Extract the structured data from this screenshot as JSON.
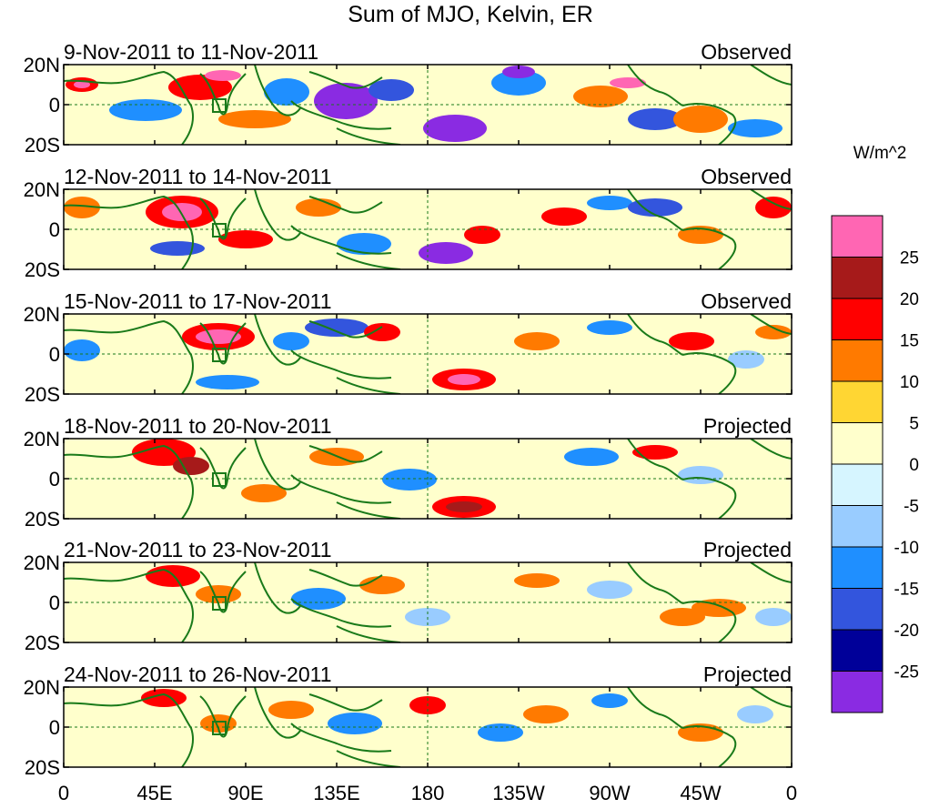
{
  "title": "Sum of MJO, Kelvin, ER",
  "units": "W/m^2",
  "y_tick_labels": [
    "20N",
    "0",
    "20S"
  ],
  "x_tick_labels": [
    "0",
    "45E",
    "90E",
    "135E",
    "180",
    "135W",
    "90W",
    "45W",
    "0"
  ],
  "colorbar": {
    "tick_labels": [
      "25",
      "20",
      "15",
      "10",
      "5",
      "0",
      "-5",
      "-10",
      "-15",
      "-20",
      "-25"
    ],
    "colors": [
      "#ff66b3",
      "#a61a1a",
      "#ff0000",
      "#ff7a00",
      "#ffd633",
      "#ffffcc",
      "#d6f5ff",
      "#99ccff",
      "#1f8fff",
      "#3355dd",
      "#000099",
      "#8a2be2"
    ]
  },
  "coastline_color": "#1a7a1a",
  "panels": [
    {
      "date_range": "9-Nov-2011 to 11-Nov-2011",
      "status": "Observed"
    },
    {
      "date_range": "12-Nov-2011 to 14-Nov-2011",
      "status": "Observed"
    },
    {
      "date_range": "15-Nov-2011 to 17-Nov-2011",
      "status": "Observed"
    },
    {
      "date_range": "18-Nov-2011 to 20-Nov-2011",
      "status": "Projected"
    },
    {
      "date_range": "21-Nov-2011 to 23-Nov-2011",
      "status": "Projected"
    },
    {
      "date_range": "24-Nov-2011 to 26-Nov-2011",
      "status": "Projected"
    }
  ]
}
